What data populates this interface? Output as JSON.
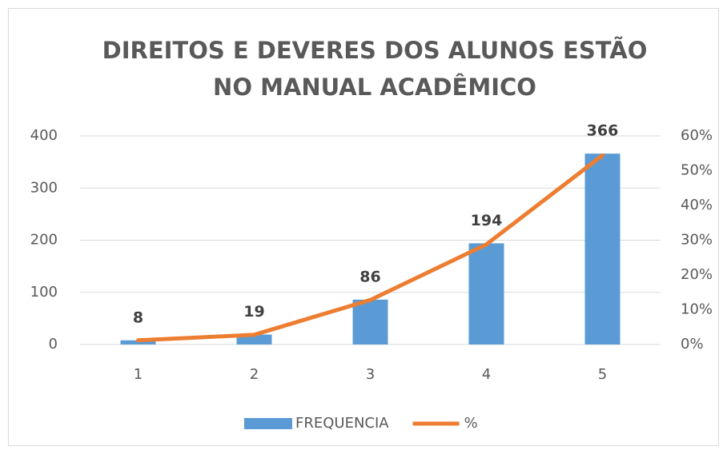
{
  "chart_data": {
    "type": "bar",
    "title": "DIREITOS E DEVERES DOS ALUNOS ESTÃO NO MANUAL ACADÊMICO",
    "categories": [
      "1",
      "2",
      "3",
      "4",
      "5"
    ],
    "series": [
      {
        "name": "FREQUENCIA",
        "type": "bar",
        "color": "#5b9bd5",
        "values": [
          8,
          19,
          86,
          194,
          366
        ]
      },
      {
        "name": "%",
        "type": "line",
        "color": "#ed7d31",
        "axis": "y2",
        "values": [
          1.2,
          2.8,
          12.8,
          28.8,
          54.4
        ]
      }
    ],
    "ylim": [
      0,
      400
    ],
    "yticks": [
      0,
      100,
      200,
      300,
      400
    ],
    "y2lim": [
      0,
      60
    ],
    "y2ticks": [
      {
        "value": 0,
        "label": "0%"
      },
      {
        "value": 10,
        "label": "10%"
      },
      {
        "value": 20,
        "label": "20%"
      },
      {
        "value": 30,
        "label": "30%"
      },
      {
        "value": 40,
        "label": "40%"
      },
      {
        "value": 50,
        "label": "50%"
      },
      {
        "value": 60,
        "label": "60%"
      }
    ],
    "grid": true,
    "legend": "bottom"
  }
}
